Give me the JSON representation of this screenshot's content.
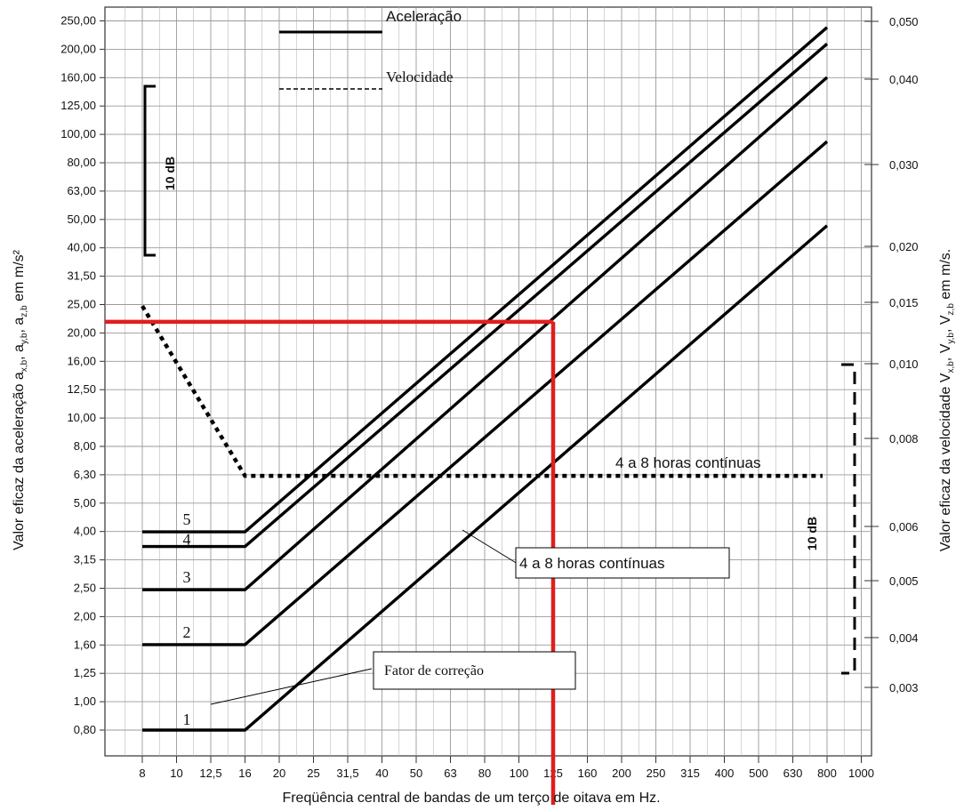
{
  "chart_data": {
    "type": "line",
    "xlabel": "Freqüência central de bandas de um terço de oitava em Hz.",
    "ylabel_left": "Valor eficaz da aceleração a",
    "ylabel_left_sub": "x,b",
    "ylabel_left_mid1": ", a",
    "ylabel_left_sub2": "y,b",
    "ylabel_left_mid2": ", a",
    "ylabel_left_sub3": "z,b",
    "ylabel_left_tail": " em m/s²",
    "ylabel_right": "Valor eficaz da velocidade V",
    "ylabel_right_sub": "x,b",
    "ylabel_right_mid1": ", V",
    "ylabel_right_sub2": "y,b",
    "ylabel_right_mid2": ", V",
    "ylabel_right_sub3": "z,b",
    "ylabel_right_tail": " em m/s.",
    "x_ticks": [
      "8",
      "10",
      "12,5",
      "16",
      "20",
      "25",
      "31,5",
      "40",
      "50",
      "63",
      "80",
      "100",
      "125",
      "160",
      "200",
      "250",
      "315",
      "400",
      "500",
      "630",
      "800",
      "1000"
    ],
    "y_left_ticks": [
      "0,80",
      "1,00",
      "1,25",
      "1,60",
      "2,00",
      "2,50",
      "3,15",
      "4,00",
      "5,00",
      "6,30",
      "8,00",
      "10,00",
      "12,50",
      "16,00",
      "20,00",
      "25,00",
      "31,50",
      "40,00",
      "50,00",
      "63,00",
      "80,00",
      "100,00",
      "125,00",
      "160,00",
      "200,00",
      "250,00"
    ],
    "y_right_ticks": [
      {
        "label": "0,003",
        "value": 0.003
      },
      {
        "label": "0,004",
        "value": 0.004
      },
      {
        "label": "0,005",
        "value": 0.005
      },
      {
        "label": "0,006",
        "value": 0.006
      },
      {
        "label": "0,008",
        "value": 0.008
      },
      {
        "label": "0,010",
        "value": 0.01
      },
      {
        "label": "0,015",
        "value": 0.015
      },
      {
        "label": "0,020",
        "value": 0.02
      },
      {
        "label": "0,030",
        "value": 0.03
      },
      {
        "label": "0,040",
        "value": 0.04
      },
      {
        "label": "0,050",
        "value": 0.05
      }
    ],
    "legend": {
      "acceleration": "Aceleração",
      "velocity": "Velocidade"
    },
    "series": [
      {
        "name": "1",
        "flat_value": 0.8,
        "x": [
          "8",
          "16",
          "800"
        ],
        "y": [
          0.8,
          0.8,
          48
        ]
      },
      {
        "name": "2",
        "flat_value": 1.6,
        "x": [
          "8",
          "16",
          "800"
        ],
        "y": [
          1.6,
          1.6,
          95
        ]
      },
      {
        "name": "3",
        "flat_value": 2.5,
        "x": [
          "8",
          "16",
          "800"
        ],
        "y": [
          2.5,
          2.5,
          160
        ]
      },
      {
        "name": "4",
        "flat_value": 3.55,
        "x": [
          "8",
          "16",
          "800"
        ],
        "y": [
          3.55,
          3.55,
          210
        ]
      },
      {
        "name": "5",
        "flat_value": 4.0,
        "x": [
          "8",
          "16",
          "800"
        ],
        "y": [
          4.0,
          4.0,
          240
        ]
      }
    ],
    "velocity_curve": {
      "x": [
        "8",
        "16",
        "1000"
      ],
      "y": [
        25.0,
        6.3,
        6.3
      ]
    },
    "red_marker": {
      "x": "125",
      "y": 22.0
    },
    "annotations": {
      "curve_label_top": "4 a 8 horas contínuas",
      "curve_label_box": "4 a 8 horas  contínuas",
      "correction_box": "Fator de correção",
      "db_left": "10 dB",
      "db_right": "10 dB"
    }
  }
}
